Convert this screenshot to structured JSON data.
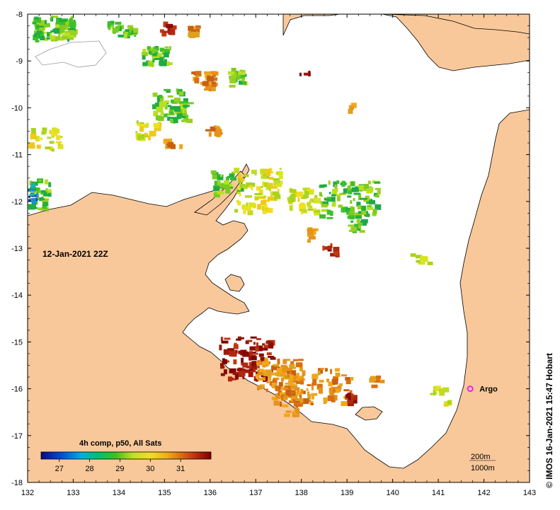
{
  "map": {
    "lon_ticks": [
      "132",
      "133",
      "134",
      "135",
      "136",
      "137",
      "138",
      "139",
      "140",
      "141",
      "142",
      "143"
    ],
    "lat_ticks": [
      "-8",
      "-9",
      "-10",
      "-11",
      "-12",
      "-13",
      "-14",
      "-15",
      "-16",
      "-17",
      "-18"
    ],
    "lon_range": [
      132,
      143
    ],
    "lat_range": [
      -18,
      -8
    ],
    "timestamp": "12-Jan-2021 22Z",
    "product_label": "4h comp, p50, All Sats",
    "colorbar_ticks": [
      "27",
      "28",
      "29",
      "30",
      "31"
    ],
    "colorbar_range": [
      26.4,
      32
    ],
    "argo_label": "Argo",
    "argo_position": {
      "lon": 141.7,
      "lat": -16.0
    },
    "isobath_200": "200m",
    "isobath_1000": "1000m",
    "credit": "© IMOS 16-Jan-2021 15:47 Hobart",
    "colors": {
      "land": "#F9C89A",
      "sea": "#FFFFFF",
      "argo": "#EE22EE"
    }
  }
}
